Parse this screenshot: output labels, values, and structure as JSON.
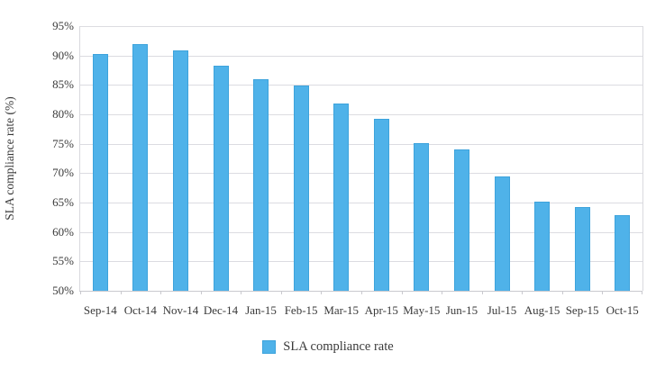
{
  "figure": {
    "background": "#ffffff",
    "colors": {
      "bar_fill": "#4fb2e9",
      "bar_border": "#3da3dc",
      "gridline": "#dcdce1",
      "axis_line": "#c9c9ce",
      "text": "#3a3a3a"
    }
  },
  "chart_data": {
    "type": "bar",
    "title": "",
    "xlabel": "",
    "ylabel": "SLA compliance rate (%)",
    "categories": [
      "Sep-14",
      "Oct-14",
      "Nov-14",
      "Dec-14",
      "Jan-15",
      "Feb-15",
      "Mar-15",
      "Apr-15",
      "May-15",
      "Jun-15",
      "Jul-15",
      "Aug-15",
      "Sep-15",
      "Oct-15"
    ],
    "series": [
      {
        "name": "SLA compliance rate",
        "values": [
          90.2,
          92.0,
          90.8,
          88.3,
          85.9,
          84.9,
          81.8,
          79.2,
          75.1,
          74.0,
          69.5,
          65.1,
          64.2,
          62.8
        ]
      }
    ],
    "ylim": [
      50,
      95
    ],
    "ytick_step": 5,
    "ytick_labels": [
      "50%",
      "55%",
      "60%",
      "65%",
      "70%",
      "75%",
      "80%",
      "85%",
      "90%",
      "95%"
    ],
    "grid": true,
    "legend": {
      "position": "bottom",
      "entries": [
        {
          "label": "SLA compliance rate",
          "swatch_color": "#4fb2e9"
        }
      ]
    }
  }
}
